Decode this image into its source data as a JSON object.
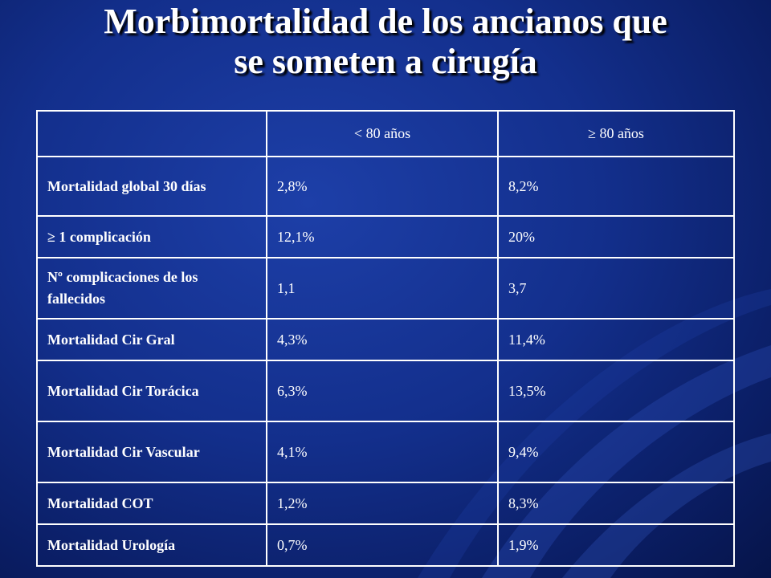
{
  "slide": {
    "title_line1": "Morbimortalidad de los ancianos que",
    "title_line2": "se someten a cirugía"
  },
  "table": {
    "headers": [
      "",
      "< 80 años",
      "≥ 80 años"
    ],
    "rows": [
      {
        "label": "Mortalidad global 30 días",
        "under80": "2,8%",
        "over80": "8,2%"
      },
      {
        "label": "≥ 1 complicación",
        "under80": "12,1%",
        "over80": "20%"
      },
      {
        "label": "Nº complicaciones de los fallecidos",
        "under80": "1,1",
        "over80": "3,7"
      },
      {
        "label": "Mortalidad Cir Gral",
        "under80": "4,3%",
        "over80": "11,4%"
      },
      {
        "label": "Mortalidad Cir Torácica",
        "under80": "6,3%",
        "over80": "13,5%"
      },
      {
        "label": "Mortalidad Cir Vascular",
        "under80": "4,1%",
        "over80": "9,4%"
      },
      {
        "label": "Mortalidad COT",
        "under80": "1,2%",
        "over80": "8,3%"
      },
      {
        "label": "Mortalidad Urología",
        "under80": "0,7%",
        "over80": "1,9%"
      }
    ]
  },
  "colors": {
    "background": "#132f8c",
    "label_text": "#3a8fd8",
    "value_text": "#ffffff",
    "grid": "#ffffff"
  }
}
